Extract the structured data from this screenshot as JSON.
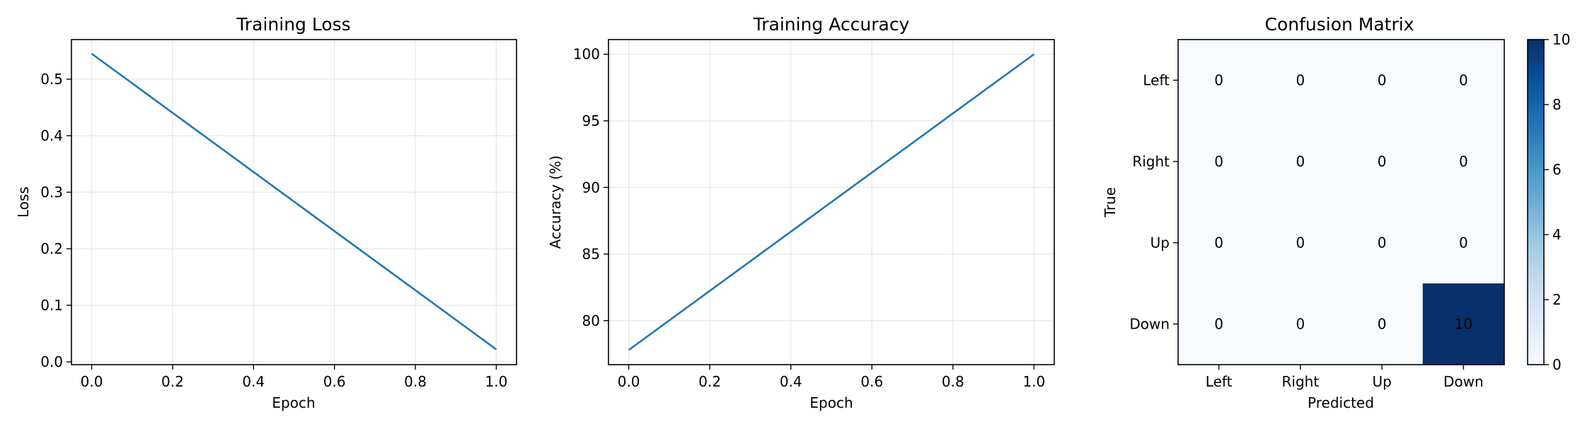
{
  "chart_data": [
    {
      "type": "line",
      "title": "Training Loss",
      "xlabel": "Epoch",
      "ylabel": "Loss",
      "xlim": [
        -0.05,
        1.05
      ],
      "ylim": [
        -0.005,
        0.57
      ],
      "xticks": [
        0.0,
        0.2,
        0.4,
        0.6,
        0.8,
        1.0
      ],
      "xtick_labels": [
        "0.0",
        "0.2",
        "0.4",
        "0.6",
        "0.8",
        "1.0"
      ],
      "yticks": [
        0.0,
        0.1,
        0.2,
        0.3,
        0.4,
        0.5
      ],
      "ytick_labels": [
        "0.0",
        "0.1",
        "0.2",
        "0.3",
        "0.4",
        "0.5"
      ],
      "grid": true,
      "color": "#1f77b4",
      "series": [
        {
          "x": [
            0.0,
            1.0
          ],
          "y": [
            0.545,
            0.022
          ]
        }
      ]
    },
    {
      "type": "line",
      "title": "Training Accuracy",
      "xlabel": "Epoch",
      "ylabel": "Accuracy (%)",
      "xlim": [
        -0.05,
        1.05
      ],
      "ylim": [
        76.7,
        101.1
      ],
      "xticks": [
        0.0,
        0.2,
        0.4,
        0.6,
        0.8,
        1.0
      ],
      "xtick_labels": [
        "0.0",
        "0.2",
        "0.4",
        "0.6",
        "0.8",
        "1.0"
      ],
      "yticks": [
        80,
        85,
        90,
        95,
        100
      ],
      "ytick_labels": [
        "80",
        "85",
        "90",
        "95",
        "100"
      ],
      "grid": true,
      "color": "#1f77b4",
      "series": [
        {
          "x": [
            0.0,
            1.0
          ],
          "y": [
            77.8,
            100.0
          ]
        }
      ]
    },
    {
      "type": "heatmap",
      "title": "Confusion Matrix",
      "xlabel": "Predicted",
      "ylabel": "True",
      "row_labels": [
        "Left",
        "Right",
        "Up",
        "Down"
      ],
      "col_labels": [
        "Left",
        "Right",
        "Up",
        "Down"
      ],
      "values": [
        [
          0,
          0,
          0,
          0
        ],
        [
          0,
          0,
          0,
          0
        ],
        [
          0,
          0,
          0,
          0
        ],
        [
          0,
          0,
          0,
          10
        ]
      ],
      "cell_labels": [
        [
          "0",
          "0",
          "0",
          "0"
        ],
        [
          "0",
          "0",
          "0",
          "0"
        ],
        [
          "0",
          "0",
          "0",
          "0"
        ],
        [
          "0",
          "0",
          "0",
          "10"
        ]
      ],
      "colorbar": {
        "range": [
          0,
          10
        ],
        "ticks": [
          0,
          2,
          4,
          6,
          8,
          10
        ],
        "tick_labels": [
          "0",
          "2",
          "4",
          "6",
          "8",
          "10"
        ]
      },
      "colormap": "Blues",
      "color_low": "#f7fbff",
      "color_high": "#08306b"
    }
  ]
}
